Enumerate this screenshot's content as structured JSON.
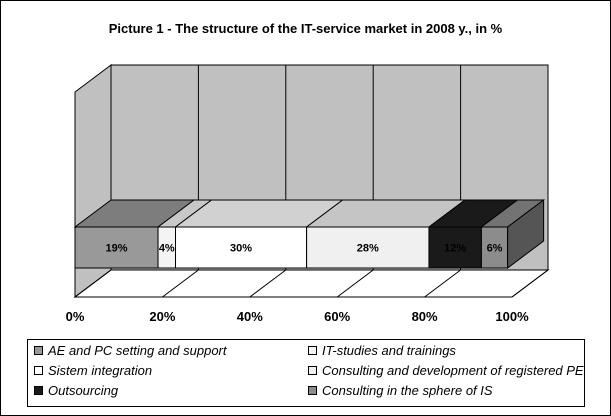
{
  "chart_data": {
    "type": "bar",
    "orientation": "horizontal-stacked-100",
    "title": "Picture 1 - The structure of the IT-service market in 2008 y., in %",
    "xlim": [
      0,
      100
    ],
    "x_ticks": [
      "0%",
      "20%",
      "40%",
      "60%",
      "80%",
      "100%"
    ],
    "grid": true,
    "legend_position": "bottom",
    "series": [
      {
        "name": "AE and PC setting and support",
        "value": 19,
        "label": "19%",
        "color": "#999999"
      },
      {
        "name": "IT-studies and trainings",
        "value": 4,
        "label": "4%",
        "color": "#f4f4f4"
      },
      {
        "name": "Sistem integration",
        "value": 30,
        "label": "30%",
        "color": "#ffffff"
      },
      {
        "name": "Consulting and development of registered PE",
        "value": 28,
        "label": "28%",
        "color": "#f0f0f0"
      },
      {
        "name": "Outsourcing",
        "value": 12,
        "label": "12%",
        "color": "#1a1a1a"
      },
      {
        "name": "Consulting in the sphere of IS",
        "value": 6,
        "label": "6%",
        "color": "#8c8c8c"
      }
    ]
  }
}
